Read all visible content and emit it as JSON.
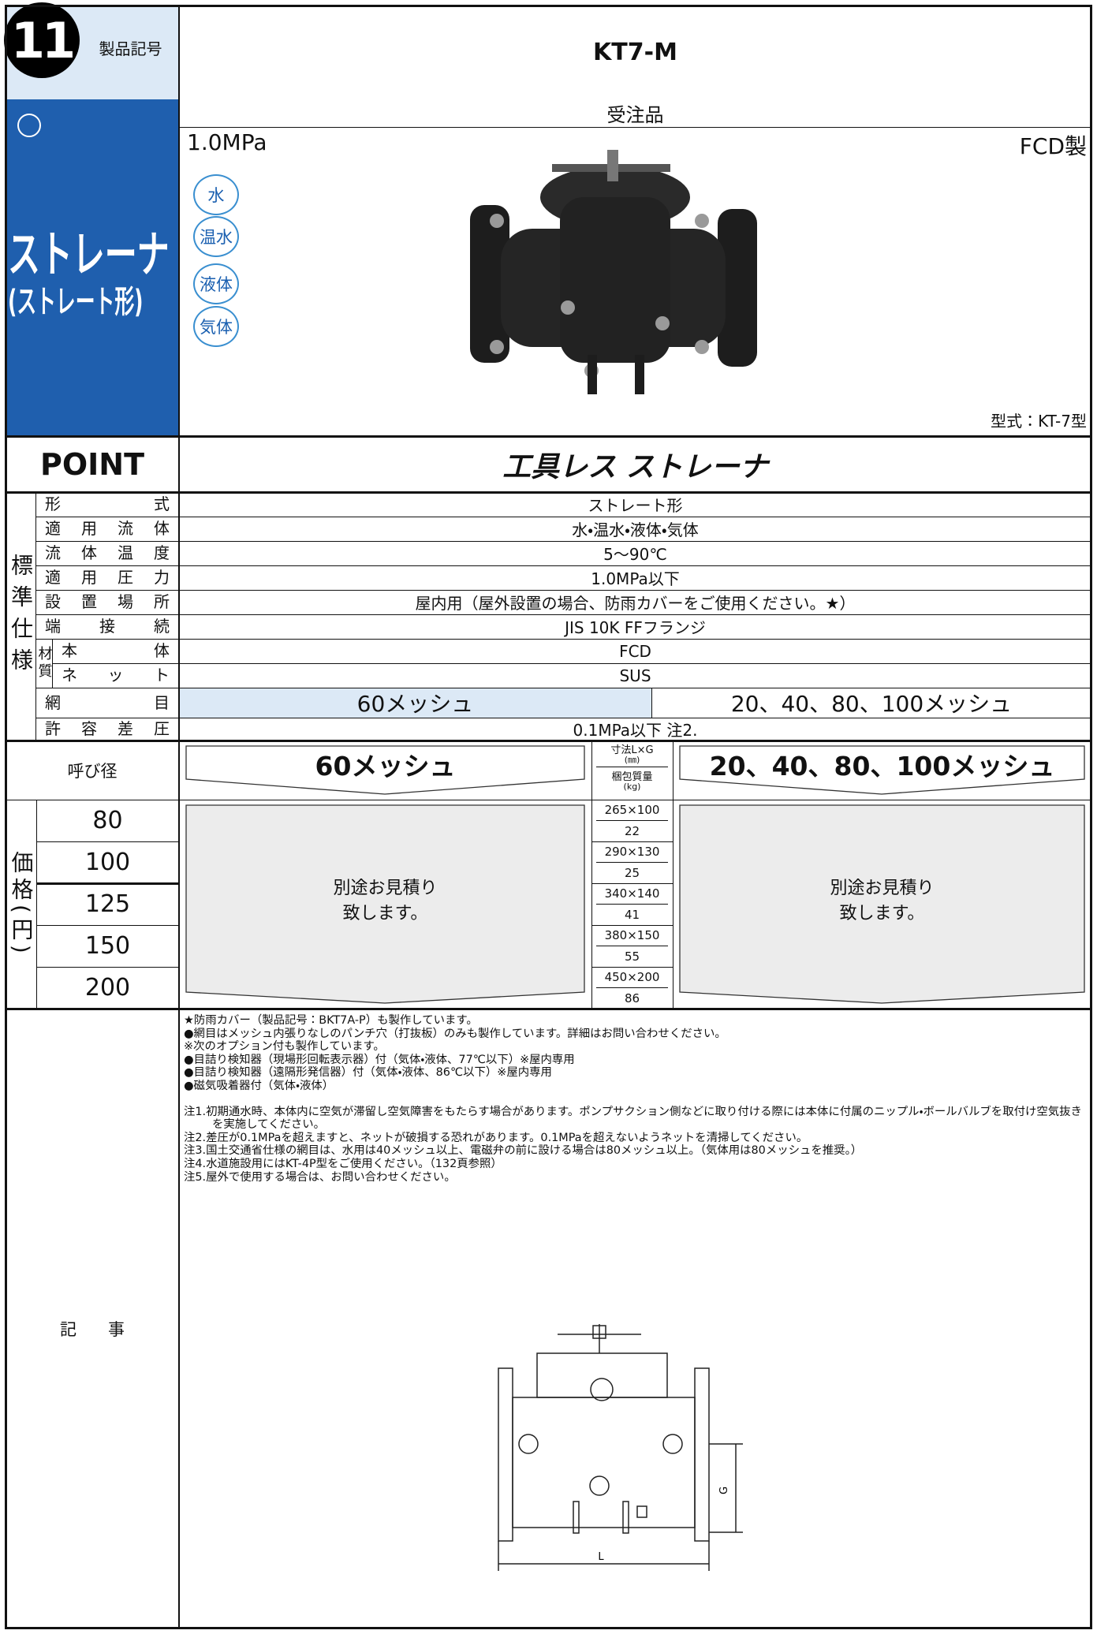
{
  "header": {
    "number": "11",
    "code_label": "製品記号",
    "model": "KT7-M"
  },
  "product": {
    "category": "ストレーナ",
    "subcategory": "(ストレート形)",
    "order_note": "受注品",
    "pressure": "1.0MPa",
    "material": "FCD製",
    "fluids": [
      "水",
      "温水",
      "液体",
      "気体"
    ],
    "type_label": "型式：KT-7型"
  },
  "point": {
    "label": "POINT",
    "text": "工具レス ストレーナ"
  },
  "spec": {
    "heading": "標準仕様",
    "material_group": "材質",
    "rows": [
      {
        "label": "形式",
        "value": "ストレート形"
      },
      {
        "label": "適用流体",
        "value": "水・温水・液体・気体"
      },
      {
        "label": "流体温度",
        "value": "5〜90℃"
      },
      {
        "label": "適用圧力",
        "value": "1.0MPa以下"
      },
      {
        "label": "設置場所",
        "value": "屋内用（屋外設置の場合、防雨カバーをご使用ください。★）"
      },
      {
        "label": "端接続",
        "value": "JIS 10K FFフランジ"
      },
      {
        "label": "本体",
        "value": "FCD"
      },
      {
        "label": "ネット",
        "value": "SUS"
      },
      {
        "label": "網目",
        "values": [
          "60メッシュ",
          "20、40、80、100メッシュ"
        ]
      },
      {
        "label": "許容差圧",
        "value": "0.1MPa以下 注2."
      }
    ]
  },
  "price": {
    "side_label": "価格(円)",
    "size_label": "呼び径",
    "col_a": "60メッシュ",
    "col_b": "20、40、80、100メッシュ",
    "dim_label": "寸法L×G",
    "dim_unit": "(㎜)",
    "mass_label": "梱包質量",
    "mass_unit": "(kg)",
    "quote": [
      "別途お見積り",
      "致します。"
    ],
    "rows": [
      {
        "size": 80,
        "dims": "265×100",
        "mass": 22
      },
      {
        "size": 100,
        "dims": "290×130",
        "mass": 25
      },
      {
        "size": 125,
        "dims": "340×140",
        "mass": 41
      },
      {
        "size": 150,
        "dims": "380×150",
        "mass": 55
      },
      {
        "size": 200,
        "dims": "450×200",
        "mass": 86
      }
    ]
  },
  "notes": {
    "label": "記事",
    "items": [
      "★防雨カバー（製品記号：BKT7A-P）も製作しています。",
      "●網目はメッシュ内張りなしのパンチ穴（打抜板）のみも製作しています。詳細はお問い合わせください。",
      "※次のオプション付も製作しています。",
      "●目詰り検知器（現場形回転表示器）付（気体・液体、77℃以下）※屋内専用",
      "●目詰り検知器（遠隔形発信器）付（気体・液体、86℃以下）※屋内専用",
      "●磁気吸着器付（気体・液体）"
    ],
    "remarks": [
      "注1.初期通水時、本体内に空気が滞留し空気障害をもたらす場合があります。ポンプサクション側などに取り付ける際には本体に付属のニップル・ボールバルブを取付け空気抜きを実施してください。",
      "注2.差圧が0.1MPaを超えますと、ネットが破損する恐れがあります。0.1MPaを超えないようネットを清掃してください。",
      "注3.国土交通省仕様の網目は、水用は40メッシュ以上、電磁弁の前に設ける場合は80メッシュ以上。（気体用は80メッシュを推奨。）",
      "注4.水道施設用にはKT-4P型をご使用ください。（132頁参照）",
      "注5.屋外で使用する場合は、お問い合わせください。"
    ],
    "drawing": {
      "l": "L",
      "g": "G"
    }
  }
}
